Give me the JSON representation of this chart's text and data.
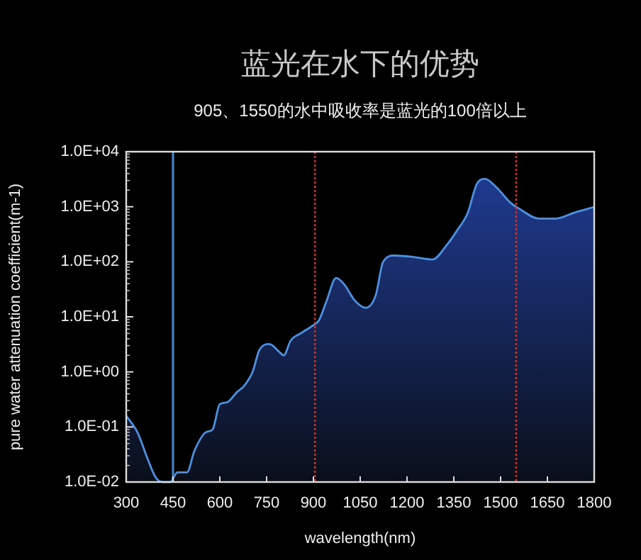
{
  "chart_data": {
    "type": "area",
    "title": "蓝光在水下的优势",
    "subtitle": "905、1550的水中吸收率是蓝光的100倍以上",
    "xlabel": "wavelength(nm)",
    "ylabel": "pure water attenuation coefficient(m-1)",
    "log": "y",
    "xlim": [
      300,
      1800
    ],
    "xticks": [
      300,
      450,
      600,
      750,
      900,
      1050,
      1200,
      1350,
      1500,
      1650,
      1800
    ],
    "ylim": [
      0.01,
      10000
    ],
    "yticks": [
      {
        "value": 0.01,
        "label": "1.0E-02"
      },
      {
        "value": 0.1,
        "label": "1.0E-01"
      },
      {
        "value": 1,
        "label": "1.0E+00"
      },
      {
        "value": 10,
        "label": "1.0E+01"
      },
      {
        "value": 100,
        "label": "1.0E+02"
      },
      {
        "value": 1000,
        "label": "1.0E+03"
      },
      {
        "value": 10000,
        "label": "1.0E+04"
      }
    ],
    "x": [
      300,
      336,
      368,
      395,
      418,
      441,
      464,
      495,
      518,
      555,
      577,
      600,
      623,
      655,
      677,
      705,
      727,
      759,
      791,
      805,
      827,
      859,
      895,
      918,
      941,
      973,
      1000,
      1032,
      1068,
      1100,
      1123,
      1159,
      1214,
      1282,
      1327,
      1359,
      1395,
      1423,
      1450,
      1486,
      1532,
      1559,
      1623,
      1677,
      1736,
      1800
    ],
    "series": [
      {
        "color": "#4f8fdc",
        "values": [
          0.16,
          0.08,
          0.027,
          0.012,
          0.01,
          0.01,
          0.015,
          0.015,
          0.036,
          0.08,
          0.09,
          0.26,
          0.28,
          0.43,
          0.55,
          1.0,
          2.5,
          3.2,
          2.3,
          2.0,
          3.7,
          5.0,
          6.8,
          8.7,
          18.6,
          51,
          38,
          20,
          14.6,
          25,
          98,
          130,
          124,
          110,
          200,
          360,
          780,
          2550,
          3200,
          2270,
          1180,
          930,
          610,
          610,
          780,
          990
        ]
      }
    ],
    "ref_lines": [
      {
        "axis": "x",
        "value": 450,
        "color": "#4a7fc1",
        "line_style": "solid"
      },
      {
        "axis": "x",
        "value": 905,
        "color": "#c0392b",
        "line_style": "dotted"
      },
      {
        "axis": "x",
        "value": 1550,
        "color": "#c0392b",
        "line_style": "dotted"
      }
    ]
  }
}
